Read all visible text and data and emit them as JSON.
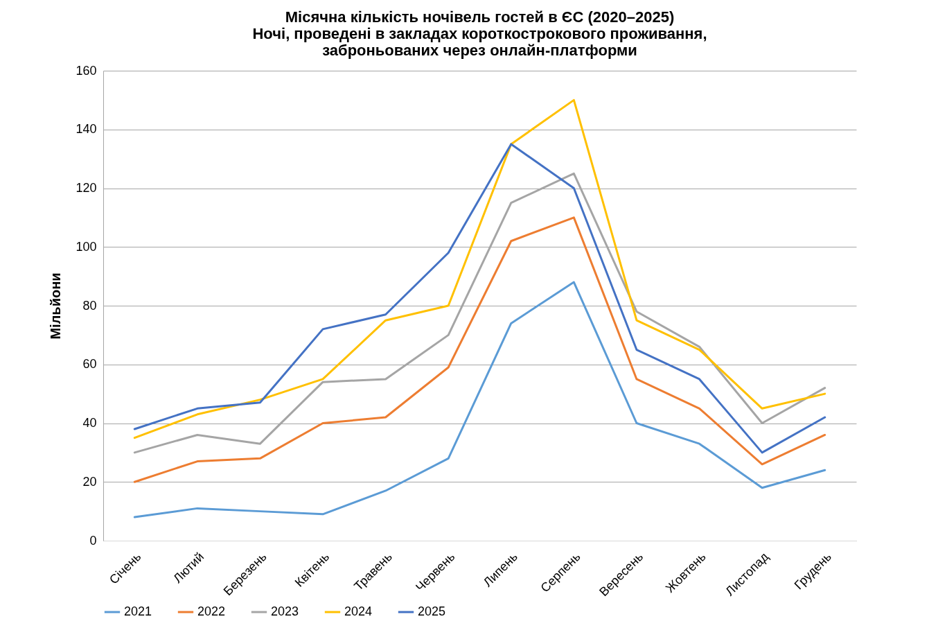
{
  "chart_data": {
    "type": "line",
    "title": "Місячна кількість ночівель гостей в ЄС (2020–2025)\nНочі, проведені в закладах короткострокового проживання,\nзаброньованих через онлайн-платформи",
    "ylabel": "Мільйони",
    "categories": [
      "Січень",
      "Лютий",
      "Березень",
      "Квітень",
      "Травень",
      "Червень",
      "Липень",
      "Серпень",
      "Вересень",
      "Жовтень",
      "Листопад",
      "Грудень"
    ],
    "series": [
      {
        "name": "2021",
        "color": "#5b9bd5",
        "values": [
          8,
          11,
          10,
          9,
          17,
          28,
          74,
          88,
          40,
          33,
          18,
          24
        ]
      },
      {
        "name": "2022",
        "color": "#ed7d31",
        "values": [
          20,
          27,
          28,
          40,
          42,
          59,
          102,
          110,
          55,
          45,
          26,
          36
        ]
      },
      {
        "name": "2023",
        "color": "#a5a5a5",
        "values": [
          30,
          36,
          33,
          54,
          55,
          70,
          115,
          125,
          78,
          66,
          40,
          52
        ]
      },
      {
        "name": "2024",
        "color": "#ffc000",
        "values": [
          35,
          43,
          48,
          55,
          75,
          80,
          135,
          150,
          75,
          65,
          45,
          50
        ]
      },
      {
        "name": "2025",
        "color": "#4472c4",
        "values": [
          38,
          45,
          47,
          72,
          77,
          98,
          135,
          120,
          65,
          55,
          30,
          42
        ]
      }
    ],
    "ylim": [
      0,
      160
    ],
    "yticks": [
      0,
      20,
      40,
      60,
      80,
      100,
      120,
      140,
      160
    ],
    "grid": "y",
    "legend": "bottom",
    "marker": "none",
    "line_style": "solid"
  }
}
